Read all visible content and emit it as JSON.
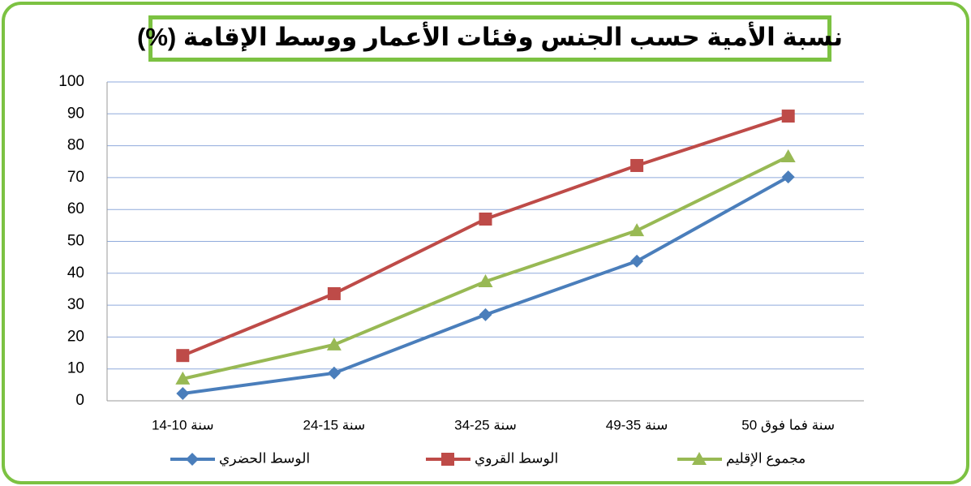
{
  "chart_data": {
    "type": "line",
    "title": "نسبة الأمية حسب الجنس وفئات الأعمار ووسط الإقامة (%)",
    "categories": [
      "14-10 سنة",
      "24-15 سنة",
      "34-25 سنة",
      "49-35 سنة",
      "50 سنة فما فوق"
    ],
    "series": [
      {
        "name": "الوسط الحضري",
        "color": "#4a7ebb",
        "marker": "diamond",
        "values": [
          2.3,
          8.7,
          27,
          43.8,
          70.2
        ]
      },
      {
        "name": "الوسط القروي",
        "color": "#be4b48",
        "marker": "square",
        "values": [
          14.2,
          33.6,
          57,
          73.8,
          89.3
        ]
      },
      {
        "name": "مجموع الإقليم",
        "color": "#98b954",
        "marker": "triangle",
        "values": [
          6.9,
          17.6,
          37.4,
          53.4,
          76.6
        ]
      }
    ],
    "ylim": [
      0,
      100
    ],
    "yticks": [
      0,
      10,
      20,
      30,
      40,
      50,
      60,
      70,
      80,
      90,
      100
    ],
    "grid": true,
    "legend": "bottom"
  }
}
